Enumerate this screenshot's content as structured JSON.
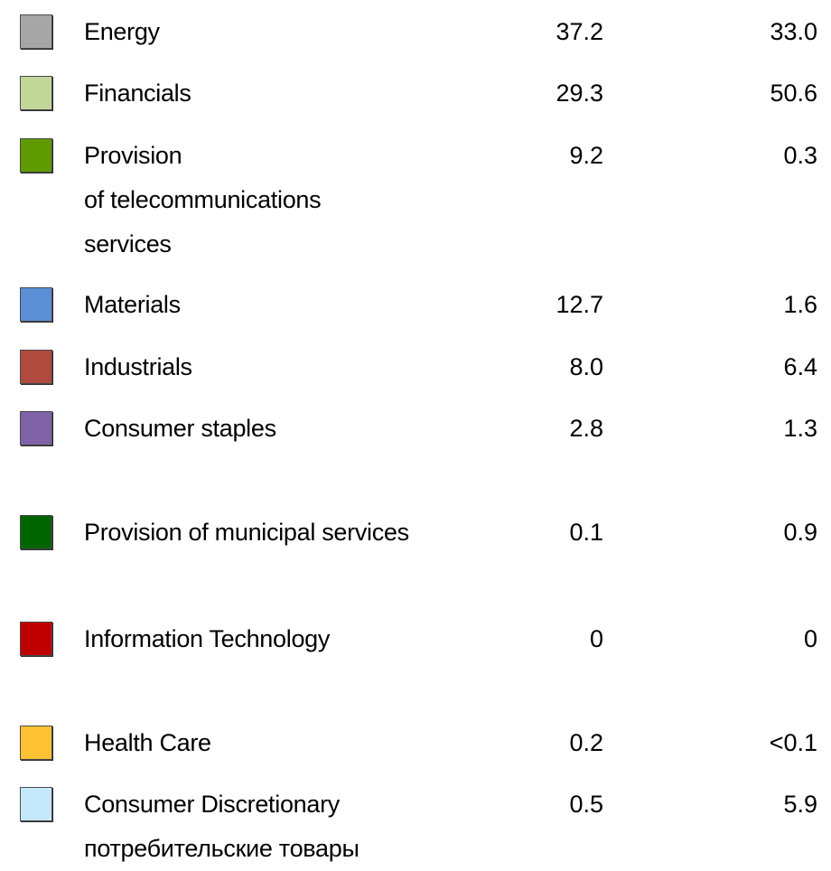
{
  "rows": [
    {
      "label": [
        "Energy"
      ],
      "color": "#a6a6a6",
      "values": [
        "37.2",
        "33.0"
      ]
    },
    {
      "label": [
        "Financials"
      ],
      "color": "#c4d79b",
      "values": [
        "29.3",
        "50.6"
      ]
    },
    {
      "label": [
        "Provision",
        "of telecommunications",
        "services"
      ],
      "color": "#5f9a00",
      "values": [
        "9.2",
        "0.3"
      ]
    },
    {
      "label": [
        "Materials"
      ],
      "color": "#5b8fd6",
      "values": [
        "12.7",
        "1.6"
      ]
    },
    {
      "label": [
        "Industrials"
      ],
      "color": "#b04a3f",
      "values": [
        "8.0",
        "6.4"
      ]
    },
    {
      "label": [
        "Consumer staples"
      ],
      "color": "#7f62a8",
      "values": [
        "2.8",
        "1.3"
      ]
    },
    {
      "label": [
        "Provision of municipal services"
      ],
      "color": "#006400",
      "values": [
        "0.1",
        "0.9"
      ]
    },
    {
      "label": [
        "Information Technology"
      ],
      "color": "#c00000",
      "values": [
        "0",
        "0"
      ]
    },
    {
      "label": [
        "Health Care"
      ],
      "color": "#ffc234",
      "values": [
        "0.2",
        "<0.1"
      ]
    },
    {
      "label": [
        "Consumer Discretionary",
        "потребительские товары"
      ],
      "color": "#c6e8fb",
      "values": [
        "0.5",
        "5.9"
      ]
    }
  ]
}
